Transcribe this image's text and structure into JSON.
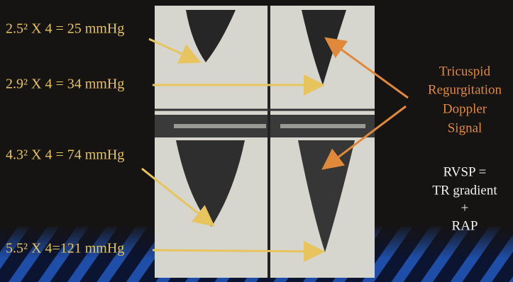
{
  "equations": [
    "2.5² X 4 = 25 mmHg",
    "2.9² X 4 = 34 mmHg",
    "4.3² X 4 = 74 mmHg",
    "5.5² X 4=121 mmHg"
  ],
  "tr_label": {
    "lines": [
      "Tricuspid",
      "Regurgitation",
      "Doppler",
      "Signal"
    ]
  },
  "rvsp_label": {
    "lines": [
      "RVSP =",
      "TR gradient",
      "+",
      "RAP"
    ]
  }
}
